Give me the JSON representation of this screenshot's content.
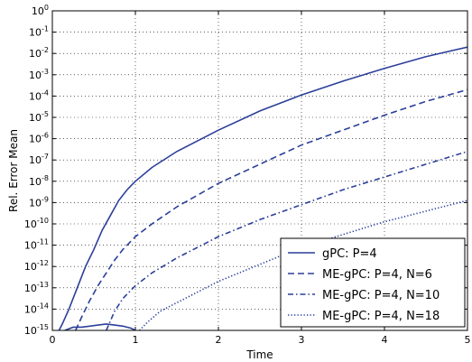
{
  "chart_data": {
    "type": "line",
    "title": "",
    "xlabel": "Time",
    "ylabel": "Rel. Error Mean",
    "xlim": [
      0,
      5
    ],
    "ylim_exponent": [
      -15,
      0
    ],
    "yscale": "log",
    "grid": true,
    "legend_position": "bottom-right",
    "x_ticks": [
      "0",
      "1",
      "2",
      "3",
      "4",
      "5"
    ],
    "y_tick_base": "10",
    "y_tick_exponents": [
      "-15",
      "-14",
      "-13",
      "-12",
      "-11",
      "-10",
      "-9",
      "-8",
      "-7",
      "-6",
      "-5",
      "-4",
      "-3",
      "-2",
      "-1",
      "0"
    ],
    "series_color": "#2b3f99",
    "series": [
      {
        "name": "gPC: P=4",
        "style": "solid",
        "x": [
          0.08,
          0.12,
          0.2,
          0.3,
          0.4,
          0.5,
          0.6,
          0.7,
          0.8,
          0.9,
          1.0,
          1.2,
          1.5,
          2.0,
          2.5,
          3.0,
          3.5,
          4.0,
          4.5,
          5.0
        ],
        "log10_y": [
          -15.0,
          -14.7,
          -14.0,
          -13.0,
          -12.0,
          -11.2,
          -10.3,
          -9.6,
          -8.9,
          -8.4,
          -8.0,
          -7.35,
          -6.6,
          -5.6,
          -4.7,
          -3.95,
          -3.3,
          -2.7,
          -2.15,
          -1.7
        ]
      },
      {
        "name": "ME-gPC: P=4, N=6",
        "style": "dashed",
        "x": [
          0.28,
          0.35,
          0.45,
          0.55,
          0.65,
          0.75,
          0.85,
          1.0,
          1.2,
          1.5,
          2.0,
          2.5,
          3.0,
          3.5,
          4.0,
          4.5,
          5.0
        ],
        "log10_y": [
          -15.0,
          -14.4,
          -13.6,
          -12.9,
          -12.3,
          -11.7,
          -11.2,
          -10.6,
          -10.0,
          -9.2,
          -8.1,
          -7.2,
          -6.3,
          -5.6,
          -4.9,
          -4.25,
          -3.7
        ]
      },
      {
        "name": "ME-gPC: P=4, N=10",
        "style": "dashdot",
        "x": [
          0.65,
          0.75,
          0.85,
          1.0,
          1.2,
          1.5,
          2.0,
          2.5,
          3.0,
          3.5,
          4.0,
          4.5,
          5.0
        ],
        "log10_y": [
          -15.0,
          -14.1,
          -13.5,
          -12.9,
          -12.3,
          -11.6,
          -10.6,
          -9.8,
          -9.1,
          -8.4,
          -7.8,
          -7.2,
          -6.6
        ]
      },
      {
        "name": "ME-gPC: P=4, N=18",
        "style": "dotted",
        "x": [
          1.05,
          1.15,
          1.3,
          1.5,
          2.0,
          2.5,
          3.0,
          3.5,
          4.0,
          4.5,
          5.0
        ],
        "log10_y": [
          -15.0,
          -14.6,
          -14.1,
          -13.7,
          -12.7,
          -11.9,
          -11.1,
          -10.5,
          -9.9,
          -9.4,
          -8.9
        ]
      }
    ],
    "noise_floor": {
      "style": "solid",
      "x": [
        0.15,
        0.25,
        0.35,
        0.45,
        0.55,
        0.65,
        0.75,
        0.85,
        0.95,
        1.0
      ],
      "log10_y": [
        -15.0,
        -14.85,
        -14.85,
        -14.8,
        -14.75,
        -14.7,
        -14.75,
        -14.8,
        -14.9,
        -15.0
      ]
    }
  }
}
